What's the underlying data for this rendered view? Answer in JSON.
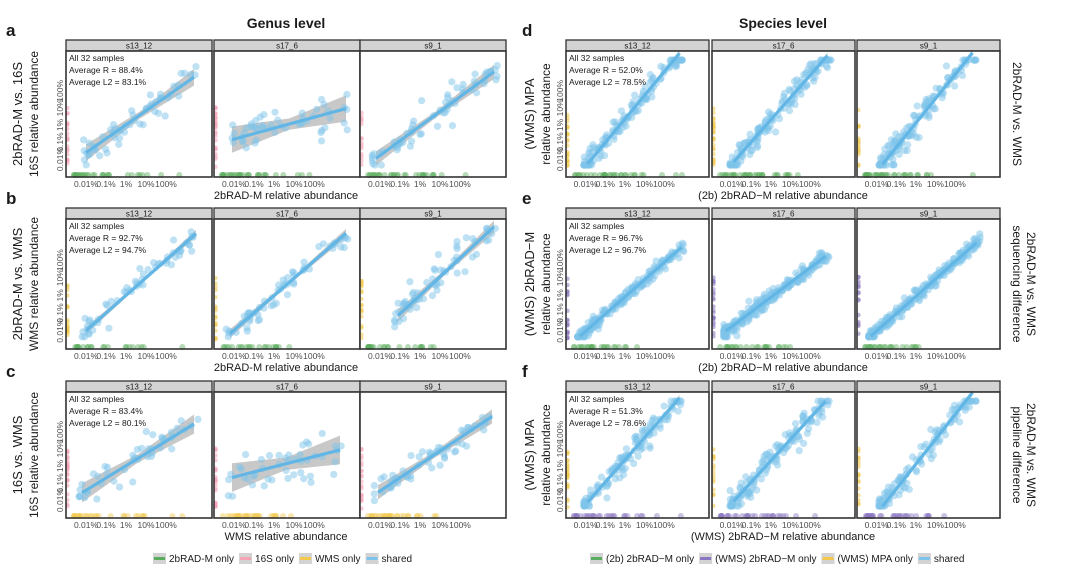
{
  "chart_data": {
    "type": "scatter",
    "column_titles": {
      "left": "Genus level",
      "right": "Species level"
    },
    "axis": {
      "scale": "log10",
      "range_log10": [
        -4.7,
        2.1
      ],
      "tick_labels": [
        "0.01%",
        "0.1%",
        "1%",
        "10%",
        "100%"
      ],
      "tick_values_percent": [
        0.01,
        0.1,
        1,
        10,
        100
      ]
    },
    "colors": {
      "shared": "#7ec3ea",
      "fit_line": "#62b6e6",
      "ci_band": "#9a9a9a",
      "green": "#5aac5e",
      "pink": "#f4a3b6",
      "yellow": "#f1c84b",
      "purple": "#8a76c0",
      "strip_bg": "#d3d3d3",
      "frame": "#333333"
    },
    "facets": [
      "s13_12",
      "s17_6",
      "s9_1"
    ],
    "annotation_header": "All 32 samples",
    "panels": [
      {
        "letter": "a",
        "column": "left",
        "ylabel_outer": "2bRAD-M vs. 16S",
        "ylabel_inner": "16S relative abundance",
        "xlabel": "2bRAD-M relative abundance",
        "right_label": [],
        "avg_r": "Average R = 88.4%",
        "avg_l2": "Average L2 = 83.1%",
        "x_only_color": "green",
        "y_only_color": "pink",
        "fits": [
          {
            "x0": -4.0,
            "x1": 1.4,
            "slope": 0.82,
            "intercept": -0.35,
            "ci": 0.35,
            "spread": 0.45,
            "n": 55
          },
          {
            "x0": -4.1,
            "x1": 1.6,
            "slope": 0.32,
            "intercept": -1.55,
            "ci": 0.55,
            "spread": 0.7,
            "n": 50
          },
          {
            "x0": -4.2,
            "x1": 1.7,
            "slope": 0.86,
            "intercept": -0.35,
            "ci": 0.3,
            "spread": 0.4,
            "n": 60
          }
        ]
      },
      {
        "letter": "b",
        "column": "left",
        "ylabel_outer": "2bRAD-M vs. WMS",
        "ylabel_inner": "WMS relative abundance",
        "xlabel": "2bRAD-M relative abundance",
        "right_label": [],
        "avg_r": "Average R = 92.7%",
        "avg_l2": "Average L2 = 94.7%",
        "x_only_color": "green",
        "y_only_color": "yellow",
        "fits": [
          {
            "x0": -4.0,
            "x1": 1.5,
            "slope": 1.0,
            "intercept": 0.0,
            "ci": 0.15,
            "spread": 0.35,
            "n": 55
          },
          {
            "x0": -4.2,
            "x1": 1.6,
            "slope": 0.98,
            "intercept": -0.05,
            "ci": 0.18,
            "spread": 0.45,
            "n": 60
          },
          {
            "x0": -3.1,
            "x1": 1.7,
            "slope": 1.05,
            "intercept": 0.1,
            "ci": 0.25,
            "spread": 0.45,
            "n": 60
          }
        ]
      },
      {
        "letter": "c",
        "column": "left",
        "ylabel_outer": "16S vs. WMS",
        "ylabel_inner": "16S relative abundance",
        "xlabel": "WMS relative abundance",
        "right_label": [],
        "avg_r": "Average R = 83.4%",
        "avg_l2": "Average L2 = 80.1%",
        "x_only_color": "yellow",
        "y_only_color": "pink",
        "fits": [
          {
            "x0": -4.2,
            "x1": 1.4,
            "slope": 0.72,
            "intercept": -0.55,
            "ci": 0.4,
            "spread": 0.45,
            "n": 45
          },
          {
            "x0": -4.1,
            "x1": 1.3,
            "slope": 0.3,
            "intercept": -1.45,
            "ci": 0.6,
            "spread": 0.7,
            "n": 45
          },
          {
            "x0": -4.1,
            "x1": 1.6,
            "slope": 0.78,
            "intercept": -0.35,
            "ci": 0.3,
            "spread": 0.4,
            "n": 55
          }
        ]
      },
      {
        "letter": "d",
        "column": "right",
        "ylabel_outer": "(WMS) MPA",
        "ylabel_inner": "relative abundance",
        "xlabel": "(2b) 2bRAD−M relative abundance",
        "right_label": [
          "2bRAD-M vs. WMS"
        ],
        "avg_r": "Average R = 52.0%",
        "avg_l2": "Average L2 = 78.5%",
        "x_only_color": "green",
        "y_only_color": "yellow",
        "fits": [
          {
            "x0": -3.9,
            "x1": 0.8,
            "slope": 1.38,
            "intercept": 1.1,
            "ci": 0.12,
            "spread": 0.35,
            "n": 140
          },
          {
            "x0": -3.9,
            "x1": 0.9,
            "slope": 1.3,
            "intercept": 0.9,
            "ci": 0.12,
            "spread": 0.4,
            "n": 150
          },
          {
            "x0": -3.7,
            "x1": 0.9,
            "slope": 1.42,
            "intercept": 0.95,
            "ci": 0.12,
            "spread": 0.4,
            "n": 140
          }
        ]
      },
      {
        "letter": "e",
        "column": "right",
        "ylabel_outer": "(WMS) 2bRAD−M",
        "ylabel_inner": "relative abundance",
        "xlabel": "(2b) 2bRAD−M relative abundance",
        "right_label": [
          "2bRAD-M vs. WMS",
          "sequencing difference"
        ],
        "avg_r": "Average R = 96.7%",
        "avg_l2": "Average L2 = 96.7%",
        "x_only_color": "green",
        "y_only_color": "purple",
        "fits": [
          {
            "x0": -4.3,
            "x1": 0.9,
            "slope": 0.97,
            "intercept": -0.15,
            "ci": 0.08,
            "spread": 0.18,
            "n": 220
          },
          {
            "x0": -4.3,
            "x1": 0.8,
            "slope": 0.83,
            "intercept": -0.45,
            "ci": 0.08,
            "spread": 0.22,
            "n": 230
          },
          {
            "x0": -4.3,
            "x1": 1.1,
            "slope": 0.98,
            "intercept": -0.1,
            "ci": 0.08,
            "spread": 0.2,
            "n": 230
          }
        ]
      },
      {
        "letter": "f",
        "column": "right",
        "ylabel_outer": "(WMS) MPA",
        "ylabel_inner": "relative abundance",
        "xlabel": "(WMS) 2bRAD−M relative abundance",
        "right_label": [
          "2bRAD-M vs. WMS",
          "pipeline difference"
        ],
        "avg_r": "Average R = 51.3%",
        "avg_l2": "Average L2 = 78.6%",
        "x_only_color": "purple",
        "y_only_color": "yellow",
        "fits": [
          {
            "x0": -3.9,
            "x1": 0.8,
            "slope": 1.3,
            "intercept": 0.95,
            "ci": 0.12,
            "spread": 0.35,
            "n": 130
          },
          {
            "x0": -3.9,
            "x1": 0.8,
            "slope": 1.25,
            "intercept": 0.8,
            "ci": 0.12,
            "spread": 0.4,
            "n": 140
          },
          {
            "x0": -3.7,
            "x1": 0.9,
            "slope": 1.45,
            "intercept": 1.0,
            "ci": 0.12,
            "spread": 0.4,
            "n": 120
          }
        ]
      }
    ],
    "legends": {
      "left": [
        {
          "label": "2bRAD-M only",
          "color": "green"
        },
        {
          "label": "16S only",
          "color": "pink"
        },
        {
          "label": "WMS only",
          "color": "yellow"
        },
        {
          "label": "shared",
          "color": "shared"
        }
      ],
      "right": [
        {
          "label": "(2b) 2bRAD−M only",
          "color": "green"
        },
        {
          "label": "(WMS) 2bRAD−M only",
          "color": "purple"
        },
        {
          "label": "(WMS) MPA only",
          "color": "yellow"
        },
        {
          "label": "shared",
          "color": "shared"
        }
      ]
    }
  }
}
